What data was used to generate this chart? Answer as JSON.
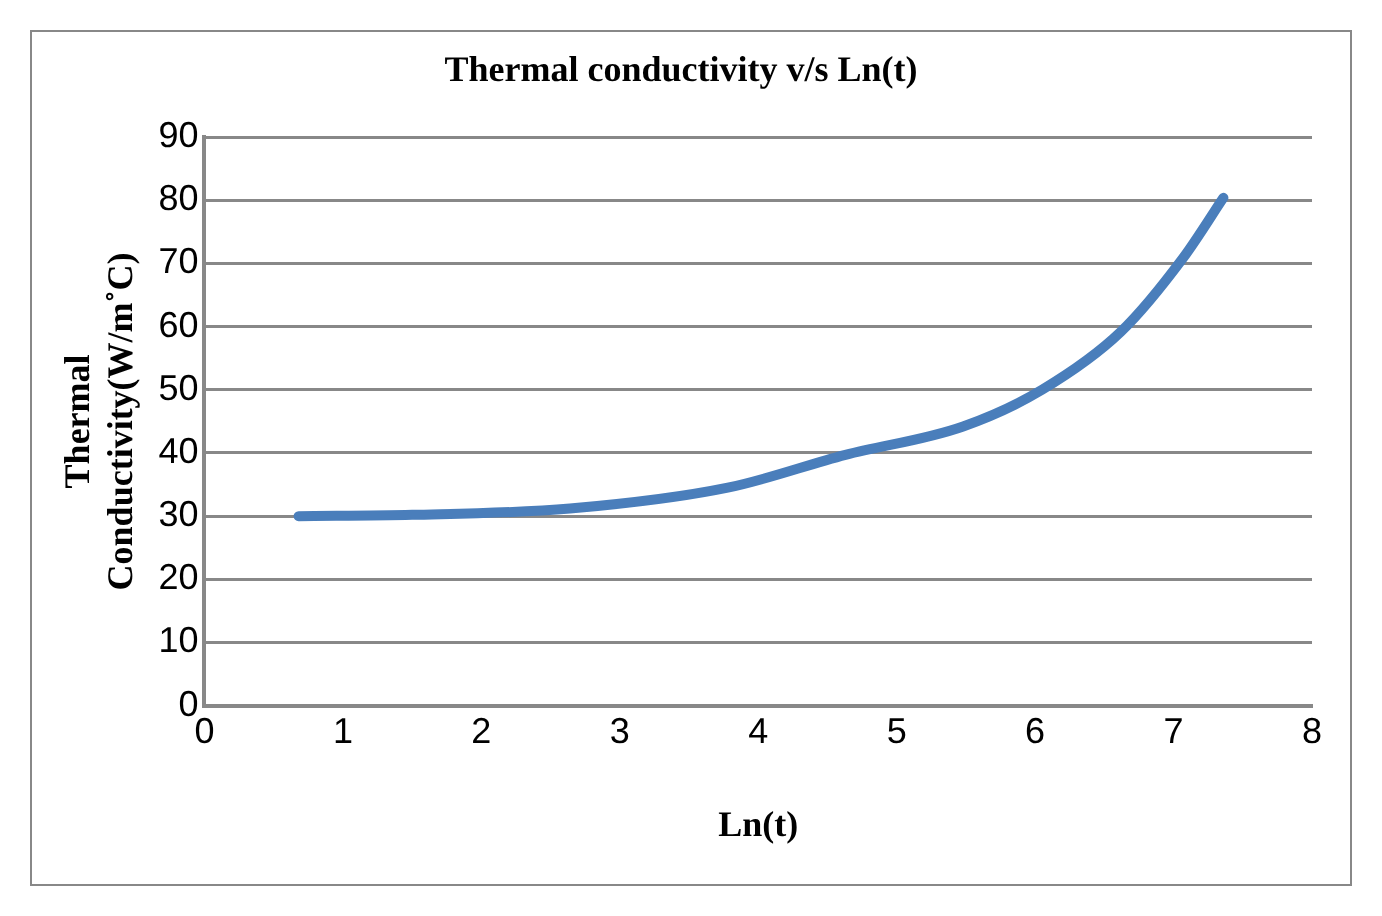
{
  "chart_data": {
    "type": "line",
    "title": "Thermal conductivity v/s Ln(t)",
    "xlabel": "Ln(t)",
    "ylabel": "Thermal Conductivity(W/m˚C)",
    "series": [
      {
        "color": "#4a7ebb",
        "x": [
          0.68,
          1.5,
          2.64,
          3.78,
          4.63,
          5.48,
          6.05,
          6.62,
          7.07,
          7.36
        ],
        "values": [
          30,
          30.2,
          31.2,
          34.5,
          39.7,
          44.2,
          50,
          59.2,
          70.9,
          80.4
        ]
      }
    ],
    "xlim": [
      0,
      8
    ],
    "xticks": [
      0,
      1,
      2,
      3,
      4,
      5,
      6,
      7,
      8
    ],
    "ylim": [
      0,
      90
    ],
    "yticks": [
      0,
      10,
      20,
      30,
      40,
      50,
      60,
      70,
      80,
      90
    ],
    "grid": "y",
    "legend": false,
    "marker": "none",
    "line_style": "solid"
  }
}
